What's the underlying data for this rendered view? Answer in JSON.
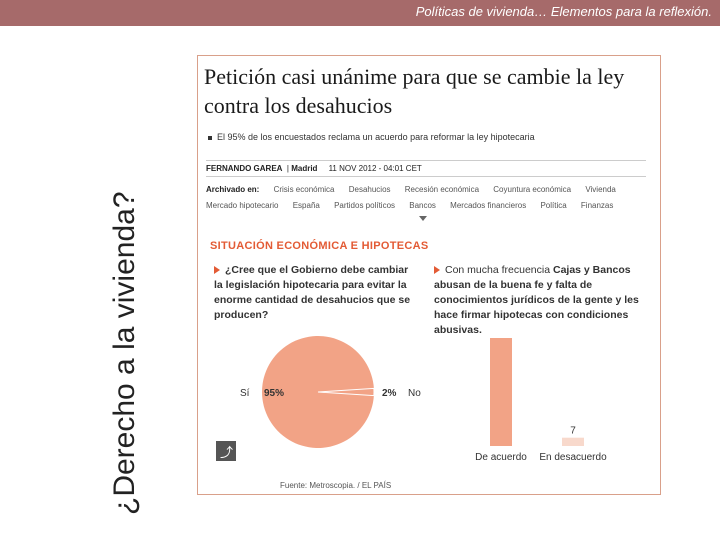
{
  "slide": {
    "header": "Políticas de vivienda… Elementos  para la reflexión.",
    "vertical_title": "¿Derecho a la vivienda?"
  },
  "article": {
    "headline": "Petición casi unánime para que se cambie la ley contra los desahucios",
    "bullet": "El 95% de los encuestados reclama un acuerdo para reformar la ley hipotecaria",
    "author": "FERNANDO GAREA",
    "location": "Madrid",
    "date": "11 NOV 2012 - 04:01 CET",
    "archived_label": "Archivado en:",
    "tags_row1": [
      "Crisis económica",
      "Desahucios",
      "Recesión económica",
      "Coyuntura económica",
      "Vivienda"
    ],
    "tags_row2": [
      "Mercado hipotecario",
      "España",
      "Partidos políticos",
      "Bancos",
      "Mercados financieros",
      "Política",
      "Finanzas"
    ]
  },
  "infographic": {
    "section_title": "SITUACIÓN ECONÓMICA E HIPOTECAS",
    "question_left": "¿Cree que el Gobierno debe cambiar la legislación hipotecaria para evitar la enorme cantidad de desahucios que se producen?",
    "question_right_pre": "Con mucha frecuencia ",
    "question_right_bold1": "Cajas y Bancos abusan de la buena fe y falta de conocimientos jurídicos de la gente y les hace firmar hipotecas con condiciones abusivas.",
    "source": "Fuente: Metroscopia. / EL PAÍS",
    "share_icon": "share-icon"
  },
  "chart_data": [
    {
      "type": "pie",
      "labels": [
        "Sí",
        "No"
      ],
      "values": [
        95,
        2
      ],
      "value_labels": [
        "95%",
        "2%"
      ],
      "colors": [
        "#f2a386",
        "#f2a386"
      ]
    },
    {
      "type": "bar",
      "categories": [
        "De acuerdo",
        "En desacuerdo"
      ],
      "values": [
        91,
        7
      ],
      "colors": [
        "#f2a386",
        "#f8d9cc"
      ]
    }
  ],
  "colors": {
    "accent": "#e35b35",
    "maroon": "#a66a6a",
    "pie": "#f2a386"
  }
}
